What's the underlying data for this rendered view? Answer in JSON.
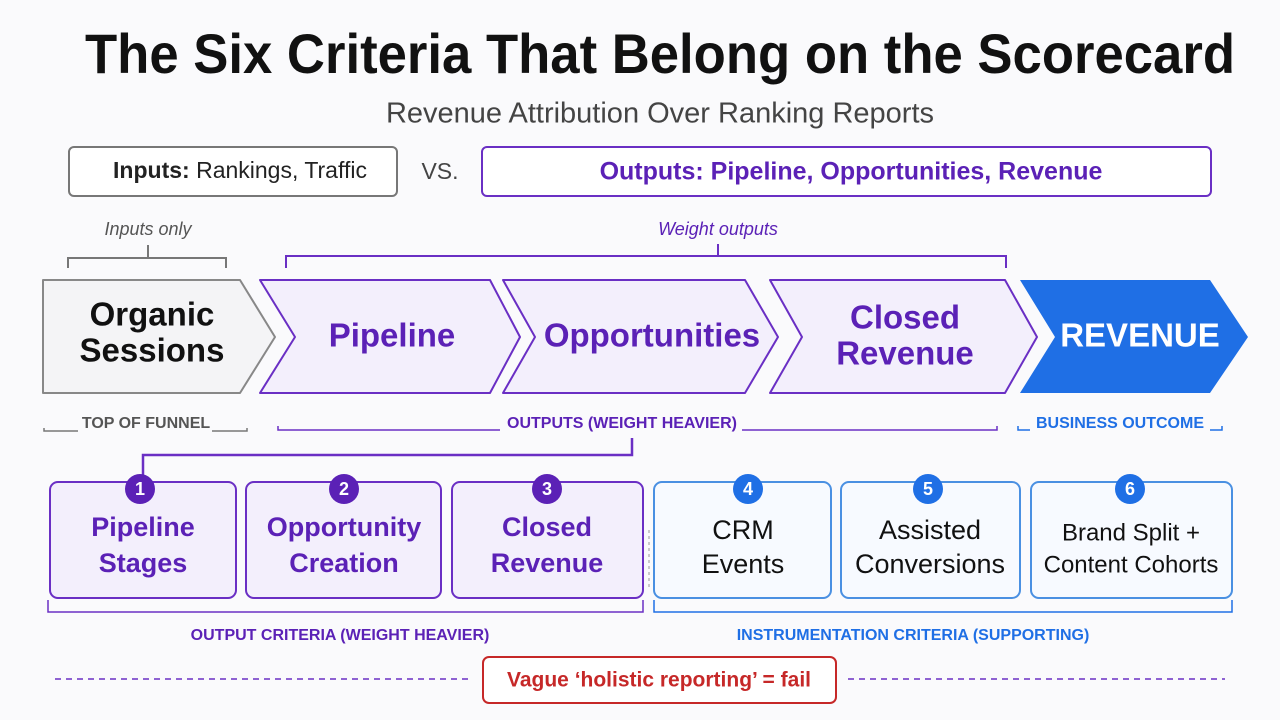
{
  "header": {
    "title": "The Six Criteria That Belong on the Scorecard",
    "subtitle": "Revenue Attribution Over Ranking Reports"
  },
  "comparison": {
    "inputs_label": "Inputs:",
    "inputs_text": "Rankings, Traffic",
    "vs": "VS.",
    "outputs": "Outputs: Pipeline, Opportunities, Revenue"
  },
  "funnel": {
    "inputs_bracket": "Inputs only",
    "outputs_bracket": "Weight outputs",
    "stages": [
      {
        "lines": [
          "Organic",
          "Sessions"
        ]
      },
      {
        "lines": [
          "Pipeline"
        ]
      },
      {
        "lines": [
          "Opportunities"
        ]
      },
      {
        "lines": [
          "Closed",
          "Revenue"
        ]
      },
      {
        "lines": [
          "REVENUE"
        ]
      }
    ],
    "groups": [
      "TOP OF FUNNEL",
      "OUTPUTS (WEIGHT HEAVIER)",
      "BUSINESS OUTCOME"
    ]
  },
  "criteria": [
    {
      "number": 1,
      "lines": [
        "Pipeline",
        "Stages"
      ]
    },
    {
      "number": 2,
      "lines": [
        "Opportunity",
        "Creation"
      ]
    },
    {
      "number": 3,
      "lines": [
        "Closed",
        "Revenue"
      ]
    },
    {
      "number": 4,
      "lines": [
        "CRM",
        "Events"
      ]
    },
    {
      "number": 5,
      "lines": [
        "Assisted",
        "Conversions"
      ]
    },
    {
      "number": 6,
      "lines": [
        "Brand Split +",
        "Content Cohorts"
      ]
    }
  ],
  "criteria_groups": [
    "OUTPUT CRITERIA (WEIGHT HEAVIER)",
    "INSTRUMENTATION CRITERIA (SUPPORTING)"
  ],
  "footer": {
    "warning": "Vague ‘holistic reporting’ = fail"
  }
}
